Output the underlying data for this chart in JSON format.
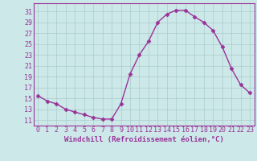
{
  "x": [
    0,
    1,
    2,
    3,
    4,
    5,
    6,
    7,
    8,
    9,
    10,
    11,
    12,
    13,
    14,
    15,
    16,
    17,
    18,
    19,
    20,
    21,
    22,
    23
  ],
  "y": [
    15.5,
    14.5,
    14.0,
    13.0,
    12.5,
    12.0,
    11.5,
    11.2,
    11.2,
    14.0,
    19.5,
    23.0,
    25.5,
    29.0,
    30.5,
    31.2,
    31.2,
    30.0,
    29.0,
    27.5,
    24.5,
    20.5,
    17.5,
    16.0
  ],
  "line_color": "#993399",
  "marker": "D",
  "markersize": 2.5,
  "linewidth": 1.0,
  "bg_color": "#cce8e8",
  "xlabel": "Windchill (Refroidissement éolien,°C)",
  "xlabel_color": "#993399",
  "xlabel_fontsize": 6.5,
  "ytick_labels": [
    "11",
    "13",
    "15",
    "17",
    "19",
    "21",
    "23",
    "25",
    "27",
    "29",
    "31"
  ],
  "yticks": [
    11,
    13,
    15,
    17,
    19,
    21,
    23,
    25,
    27,
    29,
    31
  ],
  "ylim": [
    10.0,
    32.5
  ],
  "xlim": [
    -0.5,
    23.5
  ],
  "tick_color": "#993399",
  "tick_fontsize": 6.0,
  "grid_color": "#aacccc",
  "spine_color": "#993399"
}
